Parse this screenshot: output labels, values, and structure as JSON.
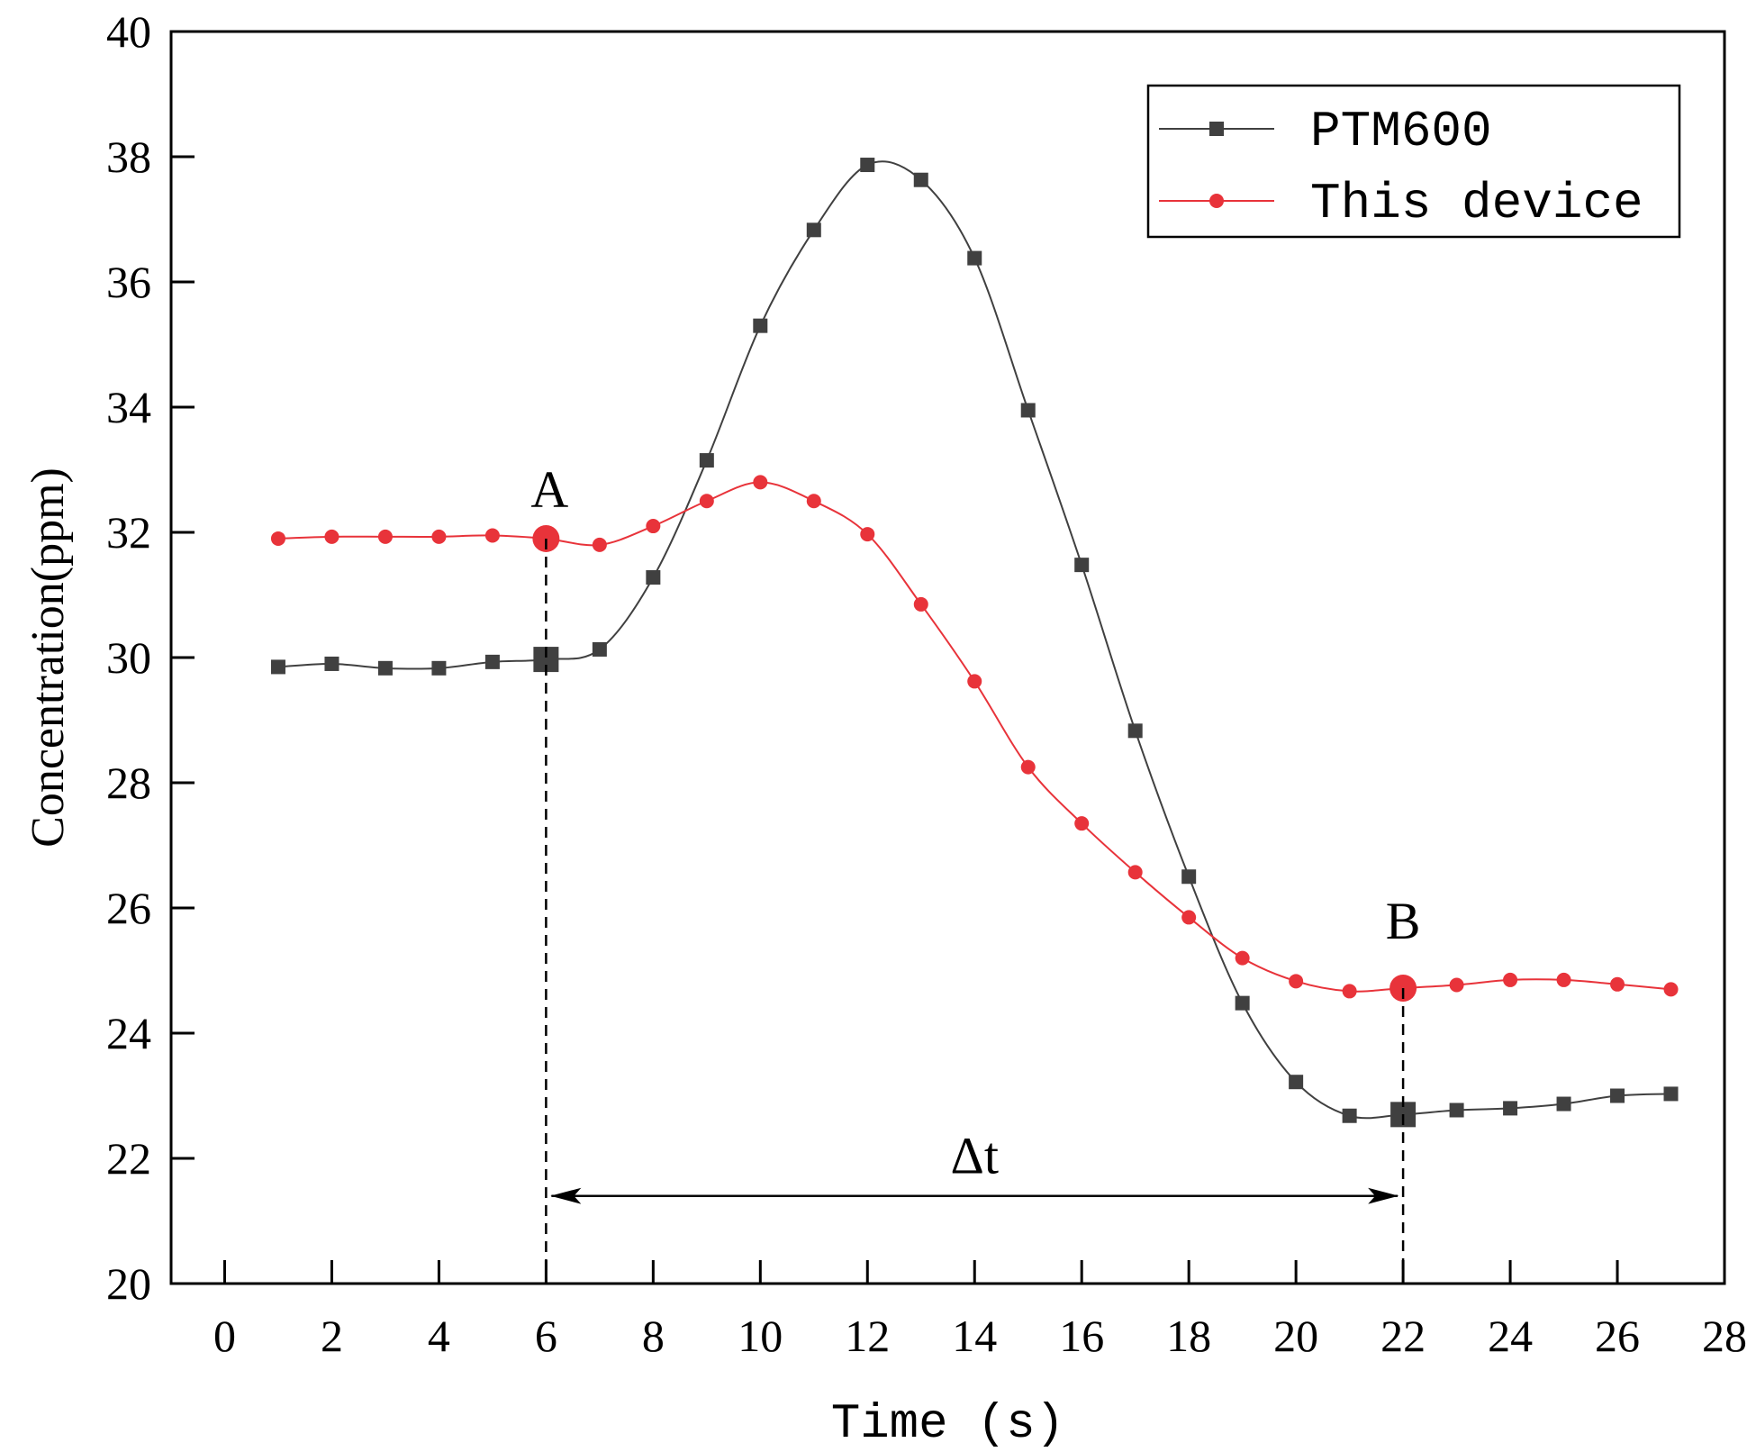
{
  "chart_data": {
    "type": "line",
    "title": "",
    "xlabel": "Time (s)",
    "ylabel": "Concentration(ppm)",
    "xlim": [
      -1,
      28
    ],
    "ylim": [
      20,
      40
    ],
    "xticks": [
      0,
      2,
      4,
      6,
      8,
      10,
      12,
      14,
      16,
      18,
      20,
      22,
      24,
      26,
      28
    ],
    "yticks": [
      20,
      22,
      24,
      26,
      28,
      30,
      32,
      34,
      36,
      38,
      40
    ],
    "legend_position": "top-right",
    "colors": {
      "PTM600": "#404040",
      "This device": "#e8333a"
    },
    "series": [
      {
        "name": "PTM600",
        "marker": "square",
        "x": [
          1,
          2,
          3,
          4,
          5,
          6,
          7,
          8,
          9,
          10,
          11,
          12,
          13,
          14,
          15,
          16,
          17,
          18,
          19,
          20,
          21,
          22,
          23,
          24,
          25,
          26,
          27
        ],
        "values": [
          29.85,
          29.9,
          29.83,
          29.83,
          29.93,
          29.97,
          30.13,
          31.28,
          33.15,
          35.3,
          36.83,
          37.87,
          37.63,
          36.38,
          33.95,
          31.48,
          28.83,
          26.5,
          24.48,
          23.22,
          22.68,
          22.7,
          22.77,
          22.8,
          22.87,
          23.0,
          23.03
        ]
      },
      {
        "name": "This device",
        "marker": "circle",
        "x": [
          1,
          2,
          3,
          4,
          5,
          6,
          7,
          8,
          9,
          10,
          11,
          12,
          13,
          14,
          15,
          16,
          17,
          18,
          19,
          20,
          21,
          22,
          23,
          24,
          25,
          26,
          27
        ],
        "values": [
          31.9,
          31.93,
          31.93,
          31.93,
          31.95,
          31.9,
          31.8,
          32.1,
          32.5,
          32.8,
          32.5,
          31.97,
          30.85,
          29.62,
          28.25,
          27.35,
          26.57,
          25.85,
          25.2,
          24.83,
          24.67,
          24.72,
          24.77,
          24.85,
          24.85,
          24.78,
          24.7
        ]
      }
    ],
    "annotations": [
      {
        "label": "A",
        "x": 6,
        "y": 31.9,
        "series": "This device"
      },
      {
        "label": "B",
        "x": 22,
        "y": 24.72,
        "series": "This device"
      },
      {
        "label": "Δt",
        "x_from": 6,
        "x_to": 22,
        "y": 21.4
      }
    ]
  }
}
